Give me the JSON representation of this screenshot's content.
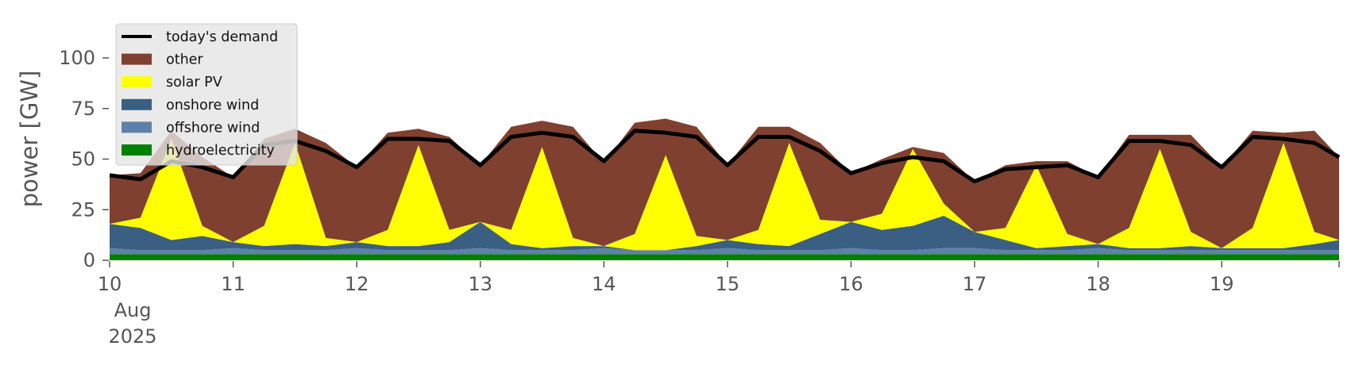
{
  "chart_data": {
    "type": "area",
    "title": "",
    "xlabel": "",
    "ylabel": "power [GW]",
    "ylim": [
      0,
      120
    ],
    "yticks": [
      0,
      25,
      50,
      75,
      100
    ],
    "x_range_days": [
      10,
      19.95
    ],
    "x_tick_days": [
      10,
      11,
      12,
      13,
      14,
      15,
      16,
      17,
      18,
      19
    ],
    "x_tick_labels": [
      "10",
      "11",
      "12",
      "13",
      "14",
      "15",
      "16",
      "17",
      "18",
      "19"
    ],
    "x_first_tick_sublabels": [
      "Aug",
      "2025"
    ],
    "grid": false,
    "stacked": true,
    "legend_position": "top-left",
    "x": [
      10.0,
      10.25,
      10.5,
      10.75,
      11.0,
      11.25,
      11.5,
      11.75,
      12.0,
      12.25,
      12.5,
      12.75,
      13.0,
      13.25,
      13.5,
      13.75,
      14.0,
      14.25,
      14.5,
      14.75,
      15.0,
      15.25,
      15.5,
      15.75,
      16.0,
      16.25,
      16.5,
      16.75,
      17.0,
      17.25,
      17.5,
      17.75,
      18.0,
      18.25,
      18.5,
      18.75,
      19.0,
      19.25,
      19.5,
      19.75,
      19.95
    ],
    "demand": {
      "name": "today's demand",
      "color": "#000000",
      "values": [
        42,
        40,
        49,
        46,
        41,
        57,
        59,
        54,
        46,
        60,
        60,
        59,
        47,
        61,
        63,
        61,
        49,
        64,
        63,
        61,
        47,
        61,
        61,
        54,
        43,
        48,
        51,
        49,
        39,
        45,
        46,
        47,
        41,
        59,
        59,
        57,
        46,
        61,
        60,
        58,
        51
      ]
    },
    "series": [
      {
        "name": "hydroelectricity",
        "color": "#008000",
        "values": [
          3,
          3,
          3,
          3,
          3,
          3,
          3,
          3,
          3,
          3,
          3,
          3,
          3,
          3,
          3,
          3,
          3,
          3,
          3,
          3,
          3,
          3,
          3,
          3,
          3,
          3,
          3,
          3,
          3,
          3,
          3,
          3,
          3,
          3,
          3,
          3,
          3,
          3,
          3,
          3,
          3
        ]
      },
      {
        "name": "offshore wind",
        "color": "#5d82a9",
        "values": [
          3,
          2,
          2,
          2,
          3,
          2,
          2,
          2,
          3,
          2,
          2,
          2,
          3,
          2,
          2,
          2,
          3,
          2,
          2,
          2,
          3,
          2,
          2,
          2,
          3,
          2,
          2,
          3,
          3,
          2,
          2,
          2,
          3,
          2,
          2,
          2,
          2,
          2,
          2,
          2,
          2
        ]
      },
      {
        "name": "onshore wind",
        "color": "#3a5f82",
        "values": [
          12,
          11,
          5,
          7,
          3,
          2,
          3,
          2,
          3,
          2,
          2,
          4,
          13,
          3,
          1,
          2,
          1,
          0,
          0,
          2,
          4,
          3,
          2,
          8,
          13,
          10,
          12,
          16,
          8,
          5,
          1,
          2,
          2,
          1,
          1,
          2,
          1,
          1,
          1,
          3,
          5
        ]
      },
      {
        "name": "solar PV",
        "color": "#ffff00",
        "values": [
          0,
          5,
          50,
          5,
          0,
          10,
          50,
          4,
          0,
          8,
          50,
          6,
          0,
          7,
          50,
          4,
          0,
          8,
          47,
          5,
          0,
          7,
          51,
          7,
          0,
          8,
          38,
          6,
          0,
          6,
          41,
          6,
          0,
          10,
          49,
          7,
          0,
          10,
          52,
          6,
          0
        ]
      },
      {
        "name": "other",
        "color": "#804030",
        "values": [
          24,
          22,
          4,
          34,
          32,
          43,
          7,
          47,
          37,
          48,
          8,
          46,
          28,
          51,
          13,
          55,
          41,
          55,
          18,
          54,
          37,
          51,
          8,
          38,
          24,
          27,
          1,
          25,
          25,
          31,
          2,
          36,
          33,
          46,
          7,
          48,
          40,
          48,
          5,
          50,
          41
        ]
      }
    ],
    "legend": [
      {
        "label": "today's demand",
        "kind": "line",
        "color": "#000000"
      },
      {
        "label": "other",
        "kind": "patch",
        "color": "#804030"
      },
      {
        "label": "solar PV",
        "kind": "patch",
        "color": "#ffff00"
      },
      {
        "label": "onshore wind",
        "kind": "patch",
        "color": "#3a5f82"
      },
      {
        "label": "offshore wind",
        "kind": "patch",
        "color": "#5d82a9"
      },
      {
        "label": "hydroelectricity",
        "kind": "patch",
        "color": "#008000"
      }
    ]
  }
}
